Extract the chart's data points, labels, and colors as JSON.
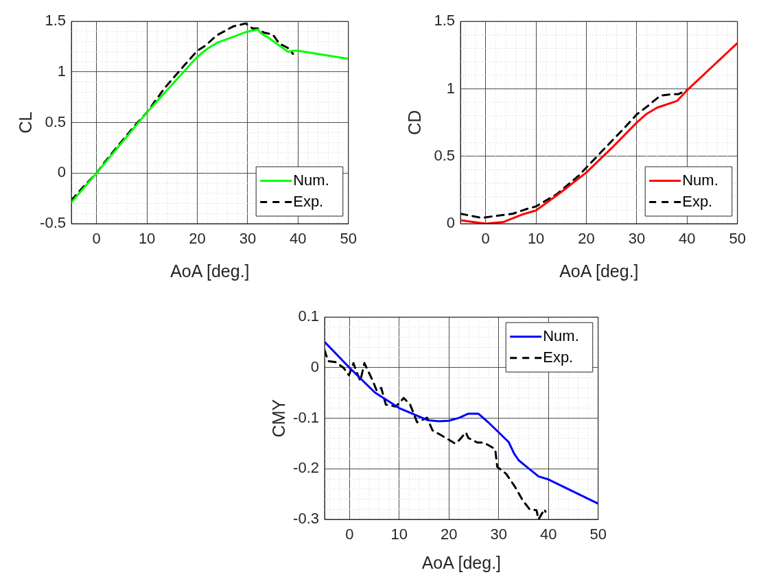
{
  "chart_data": [
    {
      "type": "line",
      "xlabel": "AoA [deg.]",
      "ylabel": "CL",
      "xlim": [
        -5,
        50
      ],
      "xticks": [
        0,
        10,
        20,
        30,
        40,
        50
      ],
      "ylim": [
        -0.5,
        1.5
      ],
      "yticks": [
        -0.5,
        0,
        0.5,
        1,
        1.5
      ],
      "grid": true,
      "legend": "bottom right",
      "series": [
        {
          "name": "Num.",
          "color": "#00ff00",
          "line_style": "solid",
          "x": [
            -5,
            0,
            10,
            20,
            22,
            24,
            30,
            32,
            32.7,
            33.8,
            36.3,
            38,
            39,
            40,
            50
          ],
          "values": [
            -0.29,
            0,
            0.6,
            1.15,
            1.23,
            1.29,
            1.4,
            1.42,
            1.38,
            1.35,
            1.26,
            1.2,
            1.21,
            1.21,
            1.13
          ]
        },
        {
          "name": "Exp.",
          "color": "#000000",
          "line_style": "dashed",
          "x": [
            -5,
            -2.7,
            0,
            1.8,
            3.6,
            7.6,
            10,
            13.5,
            17.5,
            20,
            21.6,
            23.8,
            27.1,
            29.6,
            31,
            32,
            33.2,
            35,
            36.3,
            37.9,
            39
          ],
          "values": [
            -0.27,
            -0.14,
            0,
            0.12,
            0.23,
            0.47,
            0.6,
            0.84,
            1.07,
            1.21,
            1.26,
            1.36,
            1.45,
            1.48,
            1.43,
            1.43,
            1.39,
            1.37,
            1.28,
            1.24,
            1.18
          ]
        }
      ]
    },
    {
      "type": "line",
      "xlabel": "AoA [deg.]",
      "ylabel": "CD",
      "xlim": [
        -5,
        50
      ],
      "xticks": [
        0,
        10,
        20,
        30,
        40,
        50
      ],
      "ylim": [
        0,
        1.5
      ],
      "yticks": [
        0,
        0.5,
        1,
        1.5
      ],
      "grid": true,
      "legend": "bottom right",
      "series": [
        {
          "name": "Num.",
          "color": "#ff0000",
          "line_style": "solid",
          "x": [
            -5,
            0,
            3.6,
            7.1,
            10,
            15,
            20,
            25,
            30,
            31.8,
            34,
            38,
            40,
            50
          ],
          "values": [
            0.025,
            0,
            0.013,
            0.066,
            0.098,
            0.234,
            0.38,
            0.56,
            0.75,
            0.81,
            0.86,
            0.91,
            0.99,
            1.34
          ]
        },
        {
          "name": "Exp.",
          "color": "#000000",
          "line_style": "dashed",
          "x": [
            -5,
            -0.8,
            1.4,
            5.4,
            8,
            10,
            14.1,
            18.5,
            22.9,
            27.3,
            30,
            32.1,
            34.7,
            36.9,
            38.2,
            40
          ],
          "values": [
            0.074,
            0.043,
            0.054,
            0.074,
            0.107,
            0.128,
            0.218,
            0.357,
            0.53,
            0.7,
            0.81,
            0.87,
            0.95,
            0.96,
            0.96,
            0.99
          ]
        }
      ]
    },
    {
      "type": "line",
      "xlabel": "AoA [deg.]",
      "ylabel": "CMY",
      "xlim": [
        -5,
        50
      ],
      "xticks": [
        0,
        10,
        20,
        30,
        40,
        50
      ],
      "ylim": [
        -0.3,
        0.1
      ],
      "yticks": [
        -0.3,
        -0.2,
        -0.1,
        0,
        0.1
      ],
      "grid": true,
      "legend": "top right",
      "series": [
        {
          "name": "Num.",
          "color": "#0000ff",
          "line_style": "solid",
          "x": [
            -5,
            0,
            5.1,
            10,
            15.8,
            18,
            20,
            22.1,
            23.9,
            25.9,
            27.9,
            30,
            32,
            33.1,
            34,
            38,
            40,
            50
          ],
          "values": [
            0.051,
            0,
            -0.049,
            -0.08,
            -0.104,
            -0.106,
            -0.105,
            -0.099,
            -0.091,
            -0.091,
            -0.108,
            -0.128,
            -0.147,
            -0.17,
            -0.183,
            -0.215,
            -0.221,
            -0.269
          ]
        },
        {
          "name": "Exp.",
          "color": "#000000",
          "line_style": "dashed",
          "x": [
            -5,
            -4.3,
            -2.8,
            -1.2,
            -0.1,
            0.8,
            1.7,
            2.2,
            3,
            4.6,
            5.5,
            6.4,
            7.3,
            9.3,
            10.9,
            12.2,
            13.6,
            15.6,
            16.7,
            19.4,
            21.2,
            22.1,
            23.4,
            23.9,
            25.7,
            27,
            29.3,
            29.7,
            31.5,
            33.3,
            34.8,
            36.2,
            37.6,
            38,
            39.2,
            39.4
          ],
          "values": [
            0.035,
            0.013,
            0.011,
            0,
            -0.015,
            0.009,
            -0.015,
            -0.026,
            0.009,
            -0.024,
            -0.046,
            -0.04,
            -0.073,
            -0.077,
            -0.06,
            -0.073,
            -0.108,
            -0.099,
            -0.124,
            -0.139,
            -0.15,
            -0.143,
            -0.128,
            -0.139,
            -0.148,
            -0.148,
            -0.161,
            -0.196,
            -0.21,
            -0.236,
            -0.262,
            -0.28,
            -0.282,
            -0.3,
            -0.28,
            -0.285
          ]
        }
      ]
    }
  ]
}
